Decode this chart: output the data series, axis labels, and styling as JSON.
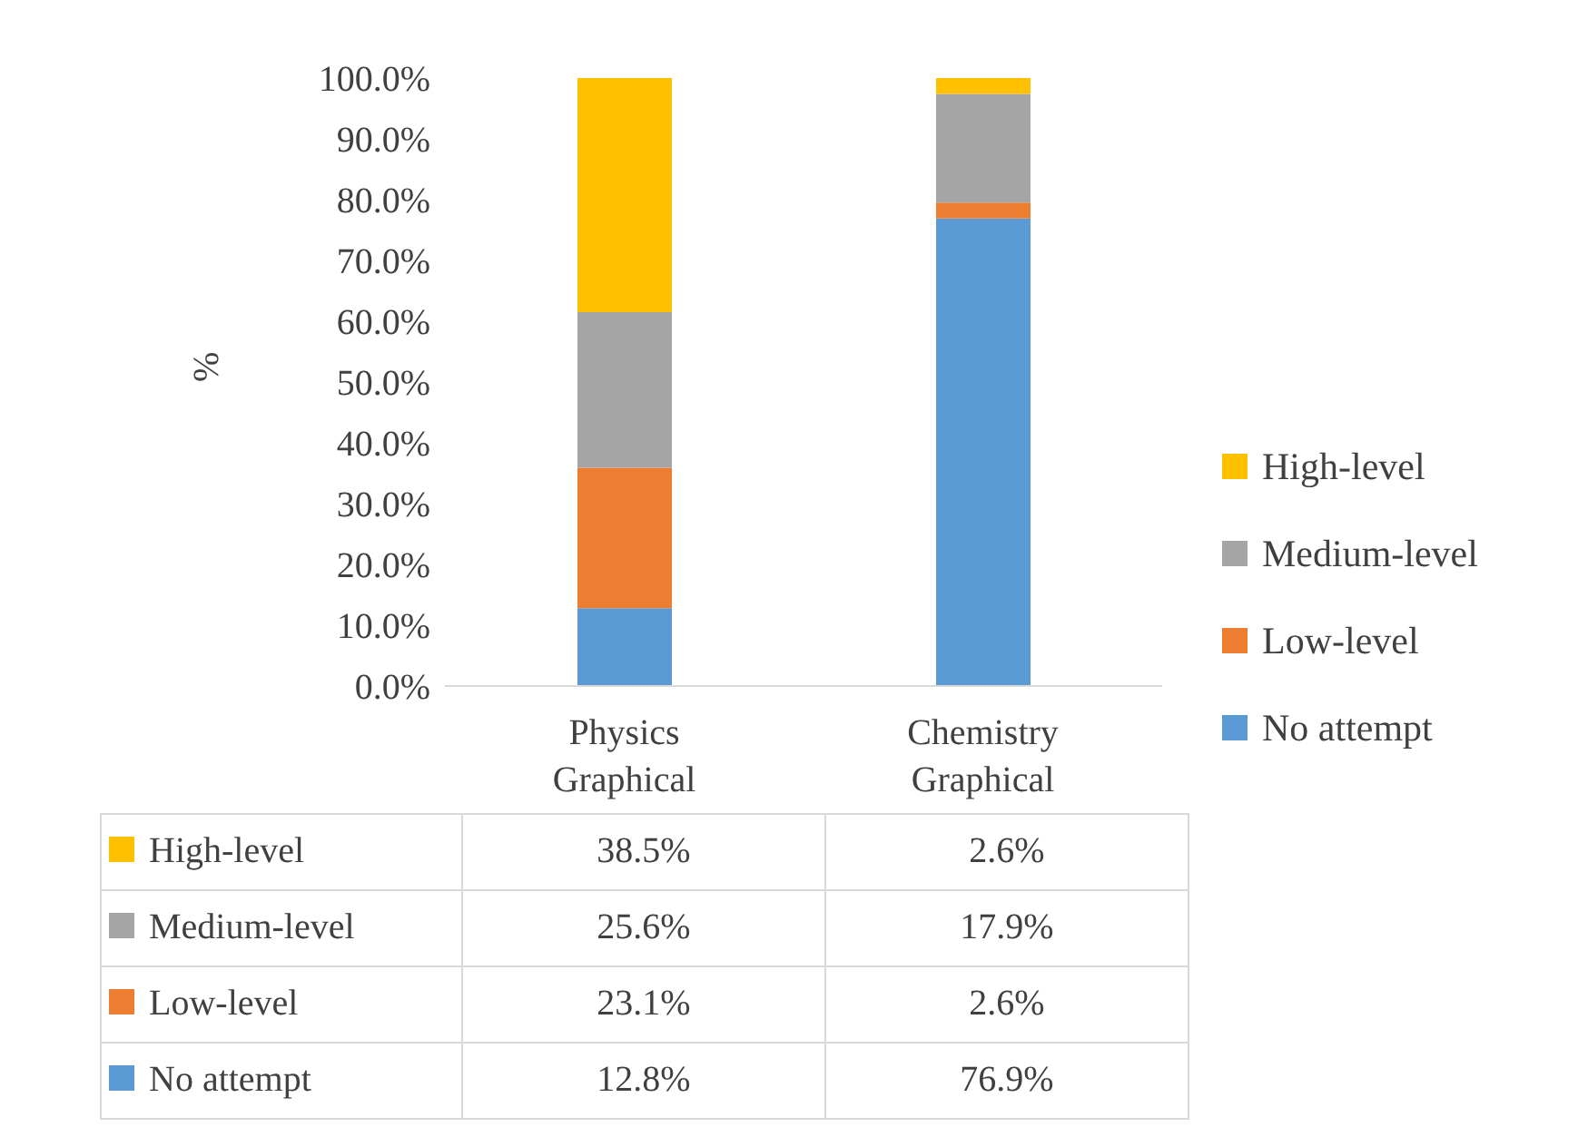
{
  "chart_data": {
    "type": "bar",
    "stacked": true,
    "ylabel": "%",
    "categories": [
      "Physics Graphical",
      "Chemistry Graphical"
    ],
    "ylim": [
      0,
      100
    ],
    "yticks": [
      {
        "value": 0,
        "label": "0.0%"
      },
      {
        "value": 10,
        "label": "10.0%"
      },
      {
        "value": 20,
        "label": "20.0%"
      },
      {
        "value": 30,
        "label": "30.0%"
      },
      {
        "value": 40,
        "label": "40.0%"
      },
      {
        "value": 50,
        "label": "50.0%"
      },
      {
        "value": 60,
        "label": "60.0%"
      },
      {
        "value": 70,
        "label": "70.0%"
      },
      {
        "value": 80,
        "label": "80.0%"
      },
      {
        "value": 90,
        "label": "90.0%"
      },
      {
        "value": 100,
        "label": "100.0%"
      }
    ],
    "legend": "right",
    "series": [
      {
        "name": "No attempt",
        "color": "#5b9bd5",
        "values": [
          12.8,
          76.9
        ],
        "value_labels": [
          "12.8%",
          "76.9%"
        ]
      },
      {
        "name": "Low-level",
        "color": "#ed7d31",
        "values": [
          23.1,
          2.6
        ],
        "value_labels": [
          "23.1%",
          "2.6%"
        ]
      },
      {
        "name": "Medium-level",
        "color": "#a5a5a5",
        "values": [
          25.6,
          17.9
        ],
        "value_labels": [
          "25.6%",
          "17.9%"
        ]
      },
      {
        "name": "High-level",
        "color": "#ffc000",
        "values": [
          38.5,
          2.6
        ],
        "value_labels": [
          "38.5%",
          "2.6%"
        ]
      }
    ]
  }
}
